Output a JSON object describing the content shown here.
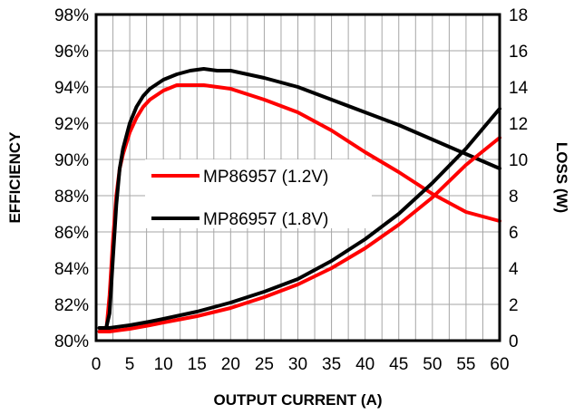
{
  "chart_data": {
    "type": "line",
    "title": "",
    "xlabel": "OUTPUT CURRENT (A)",
    "ylabel_left": "EFFICIENCY",
    "ylabel_right": "LOSS (W)",
    "xlim": [
      0,
      60
    ],
    "ylim_left": [
      80,
      98
    ],
    "ylim_right": [
      0,
      18
    ],
    "grid": true,
    "legend_position": "center-left",
    "x_ticks": [
      "0",
      "5",
      "10",
      "15",
      "20",
      "25",
      "30",
      "35",
      "40",
      "45",
      "50",
      "55",
      "60"
    ],
    "y_left_ticks": [
      "80%",
      "82%",
      "84%",
      "86%",
      "88%",
      "90%",
      "92%",
      "94%",
      "96%",
      "98%"
    ],
    "y_right_ticks": [
      "0",
      "2",
      "4",
      "6",
      "8",
      "10",
      "12",
      "14",
      "16",
      "18"
    ],
    "series": [
      {
        "name": "MP86957 (1.2V)",
        "color": "#ff0000",
        "axis": "left",
        "metric": "efficiency",
        "x": [
          0.5,
          1.0,
          1.5,
          2.0,
          2.5,
          3.0,
          3.5,
          4.0,
          5.0,
          6.0,
          7.0,
          8.0,
          10.0,
          12.0,
          14.0,
          16.0,
          18.0,
          20.0,
          25.0,
          30.0,
          35.0,
          40.0,
          45.0,
          50.0,
          55.0,
          60.0
        ],
        "y": [
          80.5,
          80.5,
          80.5,
          82.5,
          85.5,
          88.0,
          89.5,
          90.3,
          91.5,
          92.3,
          92.9,
          93.3,
          93.8,
          94.1,
          94.1,
          94.1,
          94.0,
          93.9,
          93.3,
          92.6,
          91.6,
          90.4,
          89.3,
          88.1,
          87.1,
          86.6
        ]
      },
      {
        "name": "MP86957 (1.8V)",
        "color": "#000000",
        "axis": "left",
        "metric": "efficiency",
        "x": [
          0.5,
          1.0,
          1.5,
          2.0,
          2.5,
          3.0,
          3.5,
          4.0,
          5.0,
          6.0,
          7.0,
          8.0,
          10.0,
          12.0,
          14.0,
          16.0,
          18.0,
          20.0,
          25.0,
          30.0,
          35.0,
          40.0,
          45.0,
          50.0,
          55.0,
          60.0
        ],
        "y": [
          80.7,
          80.7,
          80.7,
          81.5,
          84.5,
          87.5,
          89.5,
          90.6,
          92.0,
          92.9,
          93.5,
          93.9,
          94.4,
          94.7,
          94.9,
          95.0,
          94.9,
          94.9,
          94.5,
          94.0,
          93.3,
          92.6,
          91.9,
          91.1,
          90.3,
          89.5
        ]
      },
      {
        "name": "MP86957 (1.2V)",
        "color": "#ff0000",
        "axis": "right",
        "metric": "loss",
        "x": [
          0.5,
          2.0,
          5.0,
          8.0,
          10.0,
          15.0,
          20.0,
          25.0,
          30.0,
          35.0,
          40.0,
          45.0,
          50.0,
          55.0,
          60.0
        ],
        "y": [
          0.5,
          0.5,
          0.65,
          0.85,
          1.0,
          1.35,
          1.8,
          2.4,
          3.1,
          4.0,
          5.1,
          6.4,
          7.9,
          9.7,
          11.2
        ]
      },
      {
        "name": "MP86957 (1.8V)",
        "color": "#000000",
        "axis": "right",
        "metric": "loss",
        "x": [
          0.5,
          2.0,
          5.0,
          8.0,
          10.0,
          15.0,
          20.0,
          25.0,
          30.0,
          35.0,
          40.0,
          45.0,
          50.0,
          55.0,
          60.0
        ],
        "y": [
          0.7,
          0.7,
          0.85,
          1.05,
          1.2,
          1.6,
          2.1,
          2.7,
          3.4,
          4.4,
          5.6,
          7.0,
          8.7,
          10.6,
          12.8
        ]
      }
    ],
    "legend": [
      {
        "label": "MP86957 (1.2V)",
        "color": "#ff0000"
      },
      {
        "label": "MP86957 (1.8V)",
        "color": "#000000"
      }
    ]
  }
}
